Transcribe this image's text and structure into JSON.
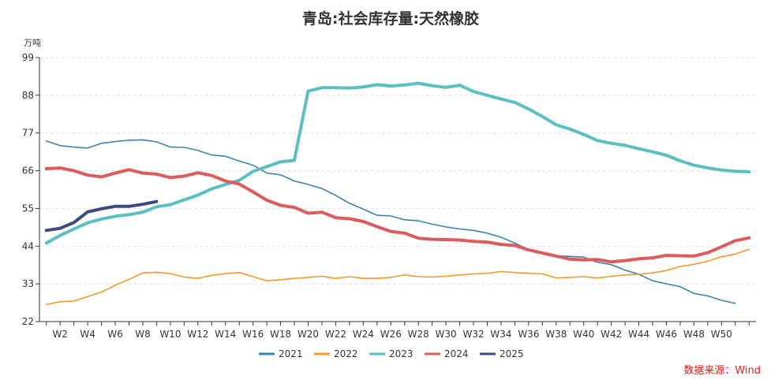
{
  "chart_data": {
    "type": "line",
    "title": "青岛:社会库存量:天然橡胶",
    "unit_label": "万吨",
    "source": "数据来源：Wind",
    "x_tick_labels": [
      "W2",
      "W4",
      "W6",
      "W8",
      "W10",
      "W12",
      "W14",
      "W16",
      "W18",
      "W20",
      "W22",
      "W24",
      "W26",
      "W28",
      "W30",
      "W32",
      "W34",
      "W36",
      "W38",
      "W40",
      "W42",
      "W44",
      "W46",
      "W48",
      "W50"
    ],
    "y_ticks": [
      "22",
      "33",
      "44",
      "55",
      "66",
      "77",
      "88",
      "99"
    ],
    "ylim": [
      22,
      99
    ],
    "grid": true,
    "legend_position": "bottom",
    "series": [
      {
        "name": "2021",
        "color": "#3c84b0",
        "width": 1.6,
        "start_week": 1,
        "values": [
          74.7,
          73.3,
          72.9,
          72.6,
          74.0,
          74.5,
          74.9,
          75.0,
          74.4,
          72.9,
          72.8,
          71.9,
          70.6,
          70.2,
          68.8,
          67.6,
          65.3,
          64.8,
          63.0,
          62.0,
          60.8,
          58.8,
          56.5,
          54.8,
          53.0,
          52.8,
          51.7,
          51.4,
          50.4,
          49.6,
          49.0,
          48.6,
          47.8,
          46.6,
          44.9,
          43.0,
          41.9,
          41.2,
          41.0,
          40.8,
          39.3,
          38.6,
          37.0,
          35.8,
          33.9,
          33.0,
          32.2,
          30.2,
          29.5,
          28.2,
          27.3
        ]
      },
      {
        "name": "2022",
        "color": "#f39a2d",
        "width": 1.6,
        "start_week": 1,
        "values": [
          27.0,
          27.8,
          28.0,
          29.3,
          30.6,
          32.6,
          34.3,
          36.2,
          36.4,
          36.0,
          35.0,
          34.6,
          35.5,
          36.0,
          36.3,
          35.1,
          33.9,
          34.2,
          34.6,
          34.9,
          35.2,
          34.6,
          35.1,
          34.6,
          34.6,
          34.9,
          35.6,
          35.1,
          35.0,
          35.2,
          35.6,
          35.9,
          36.1,
          36.6,
          36.3,
          36.1,
          35.9,
          34.7,
          34.9,
          35.1,
          34.7,
          35.2,
          35.6,
          35.8,
          36.2,
          36.9,
          38.1,
          38.7,
          39.6,
          40.9,
          41.7,
          43.1
        ]
      },
      {
        "name": "2023",
        "color": "#5bbfc1",
        "width": 4,
        "start_week": 1,
        "values": [
          44.9,
          47.1,
          49.0,
          50.8,
          51.9,
          52.7,
          53.2,
          53.9,
          55.5,
          56.1,
          57.5,
          58.9,
          60.7,
          62.0,
          63.2,
          65.8,
          67.2,
          68.6,
          69.0,
          89.2,
          90.2,
          90.2,
          90.1,
          90.4,
          91.1,
          90.7,
          91.0,
          91.5,
          90.8,
          90.3,
          90.9,
          89.1,
          88.0,
          86.9,
          85.9,
          84.0,
          81.8,
          79.4,
          78.1,
          76.6,
          74.8,
          74.0,
          73.4,
          72.4,
          71.5,
          70.5,
          68.9,
          67.6,
          66.8,
          66.2,
          65.8,
          65.7
        ]
      },
      {
        "name": "2024",
        "color": "#dd5b5b",
        "width": 4,
        "start_week": 1,
        "values": [
          66.6,
          66.8,
          66.0,
          64.7,
          64.2,
          65.3,
          66.3,
          65.3,
          65.0,
          64.0,
          64.4,
          65.4,
          64.6,
          63.0,
          62.1,
          59.8,
          57.4,
          55.9,
          55.3,
          53.6,
          53.9,
          52.3,
          52.0,
          51.2,
          49.7,
          48.3,
          47.8,
          46.3,
          46.0,
          45.9,
          45.8,
          45.4,
          45.2,
          44.5,
          44.2,
          42.9,
          42.0,
          41.1,
          40.2,
          40.0,
          40.1,
          39.4,
          39.8,
          40.3,
          40.6,
          41.3,
          41.2,
          41.1,
          42.1,
          43.8,
          45.6,
          46.4
        ]
      },
      {
        "name": "2025",
        "color": "#3d4a80",
        "width": 4,
        "start_week": 1,
        "values": [
          48.6,
          49.2,
          50.9,
          54.0,
          54.9,
          55.6,
          55.6,
          56.2,
          57.0
        ]
      }
    ]
  }
}
